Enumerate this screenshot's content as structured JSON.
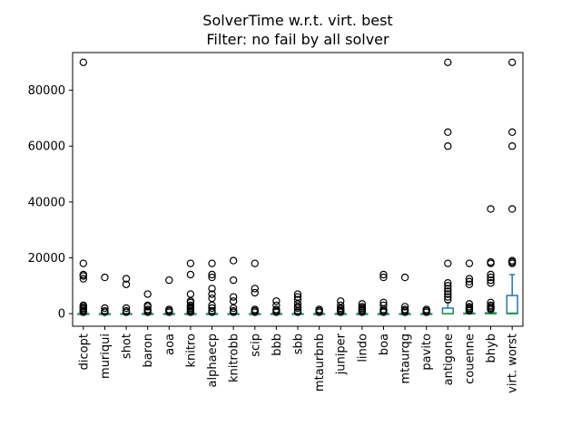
{
  "chart_data": {
    "type": "box",
    "title_lines": [
      "SolverTime w.r.t. virt. best",
      "Filter: no fail by all solver"
    ],
    "xlabel": "",
    "ylabel": "",
    "ylim": [
      -4500,
      93500
    ],
    "yticks": [
      0,
      20000,
      40000,
      60000,
      80000
    ],
    "ytick_labels": [
      "0",
      "20000",
      "40000",
      "60000",
      "80000"
    ],
    "grid": false,
    "legend": "none",
    "colors": {
      "box": "#1f77b4",
      "median": "#2ca02c",
      "flier": "#000000"
    },
    "categories": [
      "dicopt",
      "muriqui",
      "shot",
      "baron",
      "aoa",
      "knitro",
      "alphaecp",
      "knitrobb",
      "scip",
      "bbb",
      "sbb",
      "mtaurbnb",
      "juniper",
      "lindo",
      "boa",
      "mtaurqg",
      "pavito",
      "antigone",
      "couenne",
      "bhyb",
      "virt. worst"
    ],
    "boxes": [
      {
        "q1": 0,
        "median": 0,
        "q3": 0,
        "whisker_low": 0,
        "whisker_high": 100,
        "fliers": [
          90000,
          18000,
          14000,
          13500,
          12500,
          3000,
          2500,
          2000,
          1500,
          1000,
          800,
          500
        ]
      },
      {
        "q1": 0,
        "median": 0,
        "q3": 0,
        "whisker_low": 0,
        "whisker_high": 50,
        "fliers": [
          13000,
          2000,
          1000,
          500
        ]
      },
      {
        "q1": 0,
        "median": 0,
        "q3": 0,
        "whisker_low": 0,
        "whisker_high": 50,
        "fliers": [
          12500,
          10500,
          2000,
          1000,
          500
        ]
      },
      {
        "q1": 0,
        "median": 0,
        "q3": 0,
        "whisker_low": 0,
        "whisker_high": 50,
        "fliers": [
          7000,
          3000,
          2500,
          1500,
          1000,
          500
        ]
      },
      {
        "q1": 0,
        "median": 0,
        "q3": 0,
        "whisker_low": 0,
        "whisker_high": 50,
        "fliers": [
          12000,
          1500,
          1000,
          500
        ]
      },
      {
        "q1": 0,
        "median": 0,
        "q3": 0,
        "whisker_low": 0,
        "whisker_high": 100,
        "fliers": [
          18000,
          14000,
          7000,
          4500,
          4000,
          3000,
          2500,
          2000,
          1500,
          1000,
          500
        ]
      },
      {
        "q1": 0,
        "median": 0,
        "q3": 0,
        "whisker_low": 0,
        "whisker_high": 100,
        "fliers": [
          18000,
          14000,
          13000,
          9000,
          7000,
          5500,
          3000,
          2000,
          1000,
          500
        ]
      },
      {
        "q1": 0,
        "median": 0,
        "q3": 0,
        "whisker_low": 0,
        "whisker_high": 100,
        "fliers": [
          19000,
          12000,
          6000,
          4500,
          2000,
          1000,
          500
        ]
      },
      {
        "q1": 0,
        "median": 0,
        "q3": 0,
        "whisker_low": 0,
        "whisker_high": 50,
        "fliers": [
          18000,
          9000,
          7500,
          1500,
          1000,
          500
        ]
      },
      {
        "q1": 0,
        "median": 0,
        "q3": 0,
        "whisker_low": 0,
        "whisker_high": 50,
        "fliers": [
          4500,
          3000,
          1500,
          1000,
          500
        ]
      },
      {
        "q1": 0,
        "median": 0,
        "q3": 0,
        "whisker_low": 0,
        "whisker_high": 50,
        "fliers": [
          7000,
          6000,
          5000,
          3500,
          2500,
          2000,
          1000,
          500
        ]
      },
      {
        "q1": 0,
        "median": 0,
        "q3": 0,
        "whisker_low": 0,
        "whisker_high": 50,
        "fliers": [
          1500,
          1000,
          500
        ]
      },
      {
        "q1": 0,
        "median": 0,
        "q3": 0,
        "whisker_low": 0,
        "whisker_high": 50,
        "fliers": [
          4500,
          3000,
          2000,
          1500,
          1000,
          500
        ]
      },
      {
        "q1": 0,
        "median": 0,
        "q3": 0,
        "whisker_low": 0,
        "whisker_high": 50,
        "fliers": [
          3500,
          2500,
          2000,
          1500,
          1000,
          500
        ]
      },
      {
        "q1": 0,
        "median": 0,
        "q3": 0,
        "whisker_low": 0,
        "whisker_high": 50,
        "fliers": [
          14000,
          13000,
          4000,
          3000,
          1500,
          1000,
          500
        ]
      },
      {
        "q1": 0,
        "median": 0,
        "q3": 0,
        "whisker_low": 0,
        "whisker_high": 50,
        "fliers": [
          13000,
          2500,
          1500,
          1000,
          500
        ]
      },
      {
        "q1": 0,
        "median": 0,
        "q3": 0,
        "whisker_low": 0,
        "whisker_high": 50,
        "fliers": [
          1500,
          1000,
          500
        ]
      },
      {
        "q1": 0,
        "median": 0,
        "q3": 2000,
        "whisker_low": 0,
        "whisker_high": 4000,
        "fliers": [
          90000,
          65000,
          60000,
          18000,
          11000,
          10000,
          9000,
          8000,
          7000,
          6000,
          5000
        ]
      },
      {
        "q1": 0,
        "median": 0,
        "q3": 200,
        "whisker_low": 0,
        "whisker_high": 500,
        "fliers": [
          18000,
          12500,
          11500,
          10500,
          3500,
          2500,
          2000,
          1500,
          1000
        ]
      },
      {
        "q1": 0,
        "median": 0,
        "q3": 300,
        "whisker_low": 0,
        "whisker_high": 800,
        "fliers": [
          37500,
          18500,
          18000,
          14000,
          13000,
          12000,
          11000,
          4000,
          3000,
          2500,
          2000,
          1500
        ]
      },
      {
        "q1": 0,
        "median": 200,
        "q3": 6500,
        "whisker_low": 0,
        "whisker_high": 14000,
        "fliers": [
          90000,
          65000,
          60000,
          37500,
          19000,
          18500,
          18000
        ]
      }
    ]
  }
}
